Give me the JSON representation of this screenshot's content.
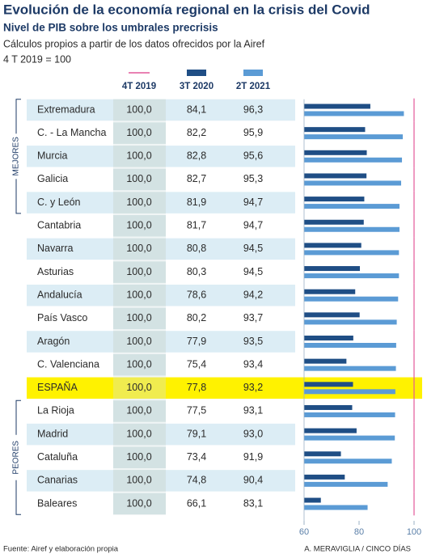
{
  "chart_data": {
    "type": "bar",
    "title": "Evolución de la economía regional en la crisis del Covid",
    "subtitle": "Nivel de PIB sobre los umbrales precrisis",
    "description": "Cálculos propios a partir de los datos ofrecidos por la Airef",
    "base_note": "4 T 2019 = 100",
    "categories": [
      "Extremadura",
      "C. - La Mancha",
      "Murcia",
      "Galicia",
      "C. y León",
      "Cantabria",
      "Navarra",
      "Asturias",
      "Andalucía",
      "País Vasco",
      "Aragón",
      "C. Valenciana",
      "ESPAÑA",
      "La Rioja",
      "Madrid",
      "Cataluña",
      "Canarias",
      "Baleares"
    ],
    "series": [
      {
        "name": "4T 2019",
        "color": "#e2589a",
        "values": [
          100,
          100,
          100,
          100,
          100,
          100,
          100,
          100,
          100,
          100,
          100,
          100,
          100,
          100,
          100,
          100,
          100,
          100
        ],
        "value_labels": [
          "100,0",
          "100,0",
          "100,0",
          "100,0",
          "100,0",
          "100,0",
          "100,0",
          "100,0",
          "100,0",
          "100,0",
          "100,0",
          "100,0",
          "100,0",
          "100,0",
          "100,0",
          "100,0",
          "100,0",
          "100,0"
        ]
      },
      {
        "name": "3T 2020",
        "color": "#1f4e85",
        "values": [
          84.1,
          82.2,
          82.8,
          82.7,
          81.9,
          81.7,
          80.8,
          80.3,
          78.6,
          80.2,
          77.9,
          75.4,
          77.8,
          77.5,
          79.1,
          73.4,
          74.8,
          66.1
        ],
        "value_labels": [
          "84,1",
          "82,2",
          "82,8",
          "82,7",
          "81,9",
          "81,7",
          "80,8",
          "80,3",
          "78,6",
          "80,2",
          "77,9",
          "75,4",
          "77,8",
          "77,5",
          "79,1",
          "73,4",
          "74,8",
          "66,1"
        ]
      },
      {
        "name": "2T 2021",
        "color": "#5b9bd5",
        "values": [
          96.3,
          95.9,
          95.6,
          95.3,
          94.7,
          94.7,
          94.5,
          94.5,
          94.2,
          93.7,
          93.5,
          93.4,
          93.2,
          93.1,
          93.0,
          91.9,
          90.4,
          83.1
        ],
        "value_labels": [
          "96,3",
          "95,9",
          "95,6",
          "95,3",
          "94,7",
          "94,7",
          "94,5",
          "94,5",
          "94,2",
          "93,7",
          "93,5",
          "93,4",
          "93,2",
          "93,1",
          "93,0",
          "91,9",
          "90,4",
          "83,1"
        ]
      }
    ],
    "groups": [
      "MEJORES",
      "PEORES"
    ],
    "xlim": [
      60,
      100
    ],
    "xticks": [
      60,
      80,
      100
    ],
    "source": "Fuente: Airef y elaboración propia",
    "credit": "A. MERAVIGLIA / CINCO DÍAS"
  }
}
